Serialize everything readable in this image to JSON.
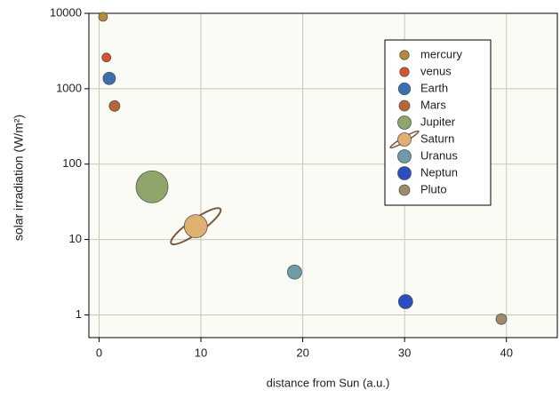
{
  "chart_data": {
    "type": "scatter",
    "xlabel": "distance from Sun (a.u.)",
    "ylabel": "solar irradiation (W/m²)",
    "xlim": [
      -1,
      45
    ],
    "xticks": [
      0,
      10,
      20,
      30,
      40
    ],
    "ylim": [
      0.5,
      10000
    ],
    "yticks": [
      1,
      10,
      100,
      1000,
      10000
    ],
    "yscale": "log",
    "grid": true,
    "legend": "upper right",
    "series": [
      {
        "name": "mercury",
        "color": "#b8893a",
        "size": 5,
        "x": [
          0.39
        ],
        "values": [
          9000
        ]
      },
      {
        "name": "venus",
        "color": "#d9502a",
        "size": 5,
        "x": [
          0.72
        ],
        "values": [
          2600
        ]
      },
      {
        "name": "Earth",
        "color": "#3a6fb0",
        "size": 7,
        "x": [
          1.0
        ],
        "values": [
          1370
        ]
      },
      {
        "name": "Mars",
        "color": "#b5673a",
        "size": 6,
        "x": [
          1.52
        ],
        "values": [
          590
        ]
      },
      {
        "name": "Jupiter",
        "color": "#8fa56a",
        "size": 18,
        "x": [
          5.2
        ],
        "values": [
          50
        ]
      },
      {
        "name": "Saturn",
        "color": "#e0b070",
        "size": 13,
        "x": [
          9.5
        ],
        "values": [
          15
        ]
      },
      {
        "name": "Uranus",
        "color": "#6f9aa8",
        "size": 8,
        "x": [
          19.2
        ],
        "values": [
          3.7
        ]
      },
      {
        "name": "Neptun",
        "color": "#2a4fc0",
        "size": 8,
        "x": [
          30.1
        ],
        "values": [
          1.5
        ]
      },
      {
        "name": "Pluto",
        "color": "#a08a6a",
        "size": 6,
        "x": [
          39.5
        ],
        "values": [
          0.88
        ]
      }
    ]
  }
}
